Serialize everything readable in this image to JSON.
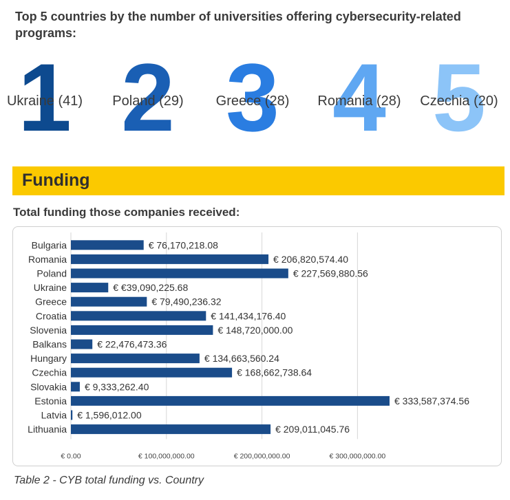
{
  "heading": "Top 5 countries by the number of universities offering cybersecurity-related programs:",
  "top5": [
    {
      "rank": "1",
      "label": "Ukraine (41)",
      "color": "#0d4a8f"
    },
    {
      "rank": "2",
      "label": "Poland (29)",
      "color": "#1a5fb4"
    },
    {
      "rank": "3",
      "label": "Greece (28)",
      "color": "#2a7de1"
    },
    {
      "rank": "4",
      "label": "Romania (28)",
      "color": "#5fa7f2"
    },
    {
      "rank": "5",
      "label": "Czechia (20)",
      "color": "#8cc4f8"
    }
  ],
  "section": {
    "title": "Funding",
    "color": "#fbc900"
  },
  "subheading": "Total funding those companies received:",
  "caption": "Table 2 - CYB total funding vs. Country",
  "chart_data": {
    "type": "bar",
    "orientation": "horizontal",
    "categories": [
      "Bulgaria",
      "Romania",
      "Poland",
      "Ukraine",
      "Greece",
      "Croatia",
      "Slovenia",
      "Balkans",
      "Hungary",
      "Czechia",
      "Slovakia",
      "Estonia",
      "Latvia",
      "Lithuania"
    ],
    "values": [
      76170218.08,
      206820574.4,
      227569880.56,
      39090225.68,
      79490236.32,
      141434176.4,
      148720000.0,
      22476473.36,
      134663560.24,
      168662738.64,
      9333262.4,
      333587374.56,
      1596012.0,
      209011045.76
    ],
    "data_labels": [
      "€ 76,170,218.08",
      "€ 206,820,574.40",
      "€ 227,569,880.56",
      "€ €39,090,225.68",
      "€ 79,490,236.32",
      "€ 141,434,176.40",
      "€ 148,720,000.00",
      "€ 22,476,473.36",
      "€ 134,663,560.24",
      "€ 168,662,738.64",
      "€ 9,333,262.40",
      "€ 333,587,374.56",
      "€ 1,596,012.00",
      "€ 209,011,045.76"
    ],
    "xticks": [
      0,
      100000000,
      200000000,
      300000000
    ],
    "xtick_labels": [
      "€ 0.00",
      "€ 100,000,000.00",
      "€ 200,000,000.00",
      "€ 300,000,000.00"
    ],
    "xlim": [
      0,
      340000000
    ],
    "bar_color": "#1a4c8a",
    "grid": true
  }
}
